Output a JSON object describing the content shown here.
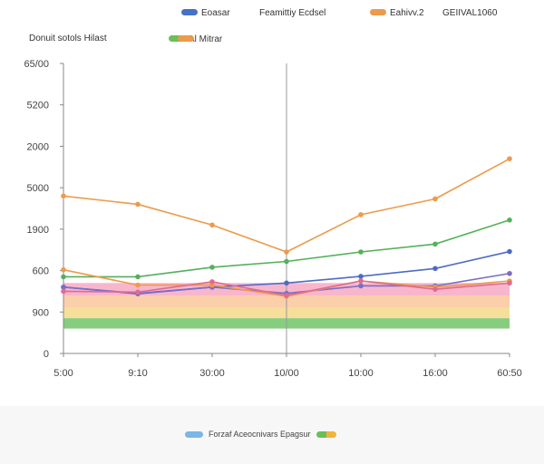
{
  "chart_data": {
    "type": "line",
    "title": "",
    "subtitle": "Donuit sotols Hilast",
    "xlabel": "",
    "ylabel": "",
    "categories": [
      "5:00",
      "9:10",
      "30:00",
      "10/00",
      "10:00",
      "16:00",
      "60:50"
    ],
    "y_tick_labels": [
      "0",
      "900",
      "600",
      "1900",
      "5000",
      "2000",
      "5200",
      "65/00"
    ],
    "ylim": [
      0,
      7
    ],
    "grid": {
      "x": false,
      "y": false
    },
    "legend": {
      "placement": "top",
      "entries": [
        {
          "name": "Eoasar",
          "color": "#4472c4"
        },
        {
          "name": "Feamittiy Ecdsel",
          "color": null
        },
        {
          "name": "Eahivv.2",
          "color": "#ed9a4b"
        },
        {
          "name": "GEIIVAL1060",
          "color": null
        },
        {
          "name": "Al Mitrar",
          "color": "#6abf59"
        }
      ]
    },
    "series": [
      {
        "name": "Eahivv.2",
        "color": "#ed9a4b",
        "values": [
          3.8,
          3.6,
          3.1,
          2.45,
          3.35,
          3.73,
          4.7
        ]
      },
      {
        "name": "Al Mitrar",
        "color": "#53b15a",
        "values": [
          1.85,
          1.85,
          2.08,
          2.22,
          2.45,
          2.64,
          3.22
        ]
      },
      {
        "name": "Eoasar",
        "color": "#4e6bc4",
        "values": [
          1.6,
          1.44,
          1.6,
          1.7,
          1.86,
          2.05,
          2.46
        ]
      },
      {
        "name": "",
        "color": "#7a6ec8",
        "values": [
          1.6,
          1.45,
          1.6,
          1.45,
          1.63,
          1.63,
          1.93
        ]
      },
      {
        "name": "",
        "color": "#ee9a4e",
        "values": [
          2.02,
          1.65,
          1.65,
          1.38,
          1.75,
          1.6,
          1.75
        ]
      },
      {
        "name": "",
        "color": "#e06b8f",
        "values": [
          1.5,
          1.48,
          1.73,
          1.4,
          1.75,
          1.55,
          1.7
        ]
      }
    ],
    "bands": [
      {
        "color": "#f7a9c4",
        "range": [
          1.4,
          1.7
        ]
      },
      {
        "color": "#f9c79b",
        "range": [
          1.1,
          1.4
        ]
      },
      {
        "color": "#f3d98a",
        "range": [
          0.85,
          1.1
        ]
      },
      {
        "color": "#72c46a",
        "range": [
          0.6,
          0.85
        ]
      }
    ],
    "annotation_x_index": 3
  },
  "footer_legend": {
    "label": "Forzaf Aceocnivars Epagsur",
    "colors": [
      "#7ab6e8",
      "#6abf59",
      "#f0b43c"
    ]
  }
}
